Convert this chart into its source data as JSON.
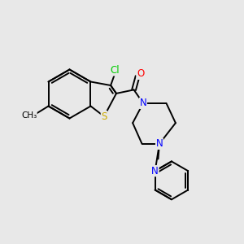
{
  "background_color": "#e8e8e8",
  "bond_color": "#000000",
  "atom_colors": {
    "Cl": "#00cc00",
    "S": "#ccaa00",
    "O": "#ff0000",
    "N": "#0000ff",
    "C": "#000000"
  },
  "figsize": [
    3.0,
    3.0
  ],
  "dpi": 100,
  "lw": 1.4,
  "fs": 8.5
}
